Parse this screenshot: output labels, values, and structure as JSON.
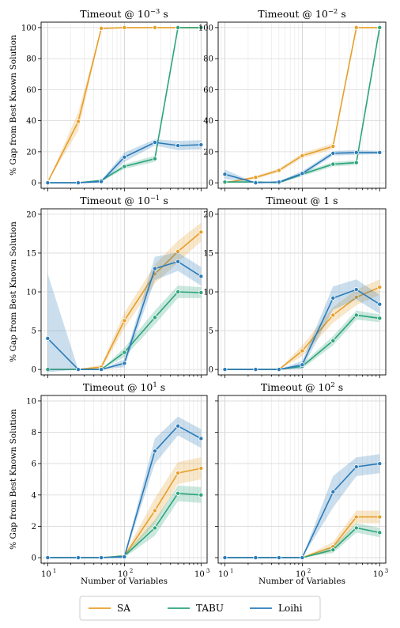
{
  "figure": {
    "ylabel": "% Gap from Best Known Solution",
    "xlabel": "Number of Variables"
  },
  "colors": {
    "SA": "#e69f2a",
    "TABU": "#2ca47a",
    "Loihi": "#2b7bb9"
  },
  "legend": {
    "placement": "bottom-center",
    "entries": [
      {
        "label": "SA",
        "color": "#e69f2a"
      },
      {
        "label": "TABU",
        "color": "#2ca47a"
      },
      {
        "label": "Loihi",
        "color": "#2b7bb9"
      }
    ]
  },
  "chart_data": [
    {
      "type": "line",
      "title_base": "Timeout @ 10",
      "title_exp": "−3",
      "title_unit": " s",
      "x_scale": "log",
      "xlim": [
        10,
        1000
      ],
      "ylim": [
        0,
        100
      ],
      "yticks": [
        "0",
        "20",
        "40",
        "60",
        "80",
        "100"
      ],
      "ytick_values": [
        0,
        20,
        40,
        60,
        80,
        100
      ],
      "grid": true,
      "x": [
        10,
        25,
        50,
        100,
        250,
        500,
        1000
      ],
      "series": [
        {
          "name": "SA",
          "values": [
            0.5,
            39.5,
            99.5,
            100,
            100,
            100,
            100
          ],
          "band": [
            0,
            6,
            0.5,
            0,
            0,
            0,
            0
          ]
        },
        {
          "name": "TABU",
          "values": [
            0,
            0,
            1.5,
            10.5,
            15.5,
            100,
            100
          ],
          "band": [
            0,
            0,
            0.8,
            1.5,
            2,
            0,
            0
          ]
        },
        {
          "name": "Loihi",
          "values": [
            0,
            0,
            0.8,
            16.5,
            26,
            24,
            24.5
          ],
          "band": [
            0,
            0,
            0.8,
            3,
            2,
            3,
            3
          ]
        }
      ]
    },
    {
      "type": "line",
      "title_base": "Timeout @ 10",
      "title_exp": "−2",
      "title_unit": " s",
      "x_scale": "log",
      "xlim": [
        10,
        1000
      ],
      "ylim": [
        0,
        100
      ],
      "yticks": [
        "0",
        "20",
        "40",
        "60",
        "80",
        "100"
      ],
      "ytick_values": [
        0,
        20,
        40,
        60,
        80,
        100
      ],
      "grid": true,
      "x": [
        10,
        25,
        50,
        100,
        250,
        500,
        1000
      ],
      "series": [
        {
          "name": "SA",
          "values": [
            0,
            3.5,
            8,
            17.5,
            23.5,
            100,
            100
          ],
          "band": [
            0,
            1,
            1.2,
            1.5,
            2,
            0,
            0
          ]
        },
        {
          "name": "TABU",
          "values": [
            0.5,
            0.5,
            0,
            5.5,
            12,
            13,
            100
          ],
          "band": [
            0,
            0.3,
            0,
            1.2,
            1.5,
            1.5,
            0
          ]
        },
        {
          "name": "Loihi",
          "values": [
            5.5,
            0,
            0.5,
            6,
            19,
            19.5,
            19.5
          ],
          "band": [
            3,
            0,
            0.5,
            1.5,
            1.5,
            1.5,
            1
          ]
        }
      ]
    },
    {
      "type": "line",
      "title_base": "Timeout @ 10",
      "title_exp": "−1",
      "title_unit": " s",
      "x_scale": "log",
      "xlim": [
        10,
        1000
      ],
      "ylim": [
        0,
        20
      ],
      "yticks": [
        "0",
        "5",
        "10",
        "15",
        "20"
      ],
      "ytick_values": [
        0,
        5,
        10,
        15,
        20
      ],
      "grid": true,
      "x": [
        10,
        25,
        50,
        100,
        250,
        500,
        1000
      ],
      "series": [
        {
          "name": "SA",
          "values": [
            0,
            0,
            0.3,
            6.3,
            12.3,
            15.2,
            17.7
          ],
          "band": [
            0,
            0,
            0.3,
            1,
            1.2,
            1.4,
            1.2
          ]
        },
        {
          "name": "TABU",
          "values": [
            0,
            0,
            0,
            2.2,
            6.7,
            10,
            9.9
          ],
          "band": [
            0,
            0,
            0,
            0.6,
            0.9,
            0.8,
            0.7
          ]
        },
        {
          "name": "Loihi",
          "values": [
            4,
            0,
            0,
            0.8,
            13,
            13.9,
            12
          ],
          "band": [
            8.3,
            0,
            0,
            0.5,
            1.5,
            1.2,
            1.2
          ]
        }
      ]
    },
    {
      "type": "line",
      "title_base": "Timeout @ 1",
      "title_exp": "",
      "title_unit": " s",
      "x_scale": "log",
      "xlim": [
        10,
        1000
      ],
      "ylim": [
        0,
        20
      ],
      "yticks": [
        "0",
        "5",
        "10",
        "15",
        "20"
      ],
      "ytick_values": [
        0,
        5,
        10,
        15,
        20
      ],
      "grid": true,
      "x": [
        10,
        25,
        50,
        100,
        250,
        500,
        1000
      ],
      "series": [
        {
          "name": "SA",
          "values": [
            0,
            0,
            0,
            2.4,
            7,
            9.3,
            10.6
          ],
          "band": [
            0,
            0,
            0,
            0.7,
            1,
            1,
            1
          ]
        },
        {
          "name": "TABU",
          "values": [
            0,
            0,
            0,
            0.4,
            3.7,
            7,
            6.6
          ],
          "band": [
            0,
            0,
            0,
            0.3,
            0.6,
            0.6,
            0.5
          ]
        },
        {
          "name": "Loihi",
          "values": [
            0,
            0,
            0,
            0.6,
            9.2,
            10.3,
            8.4
          ],
          "band": [
            0,
            0,
            0,
            0.5,
            1.5,
            1.3,
            1.2
          ]
        }
      ]
    },
    {
      "type": "line",
      "title_base": "Timeout @ 10",
      "title_exp": "1",
      "title_unit": " s",
      "x_scale": "log",
      "xlim": [
        10,
        1000
      ],
      "ylim": [
        0,
        10
      ],
      "yticks": [
        "0",
        "2",
        "4",
        "6",
        "8",
        "10"
      ],
      "ytick_values": [
        0,
        2,
        4,
        6,
        8,
        10
      ],
      "grid": true,
      "x": [
        10,
        25,
        50,
        100,
        250,
        500,
        1000
      ],
      "series": [
        {
          "name": "SA",
          "values": [
            0,
            0,
            0,
            0.1,
            3,
            5.4,
            5.7
          ],
          "band": [
            0,
            0,
            0,
            0.1,
            0.8,
            0.7,
            0.7
          ]
        },
        {
          "name": "TABU",
          "values": [
            0,
            0,
            0,
            0.1,
            1.9,
            4.1,
            4
          ],
          "band": [
            0,
            0,
            0,
            0.1,
            0.5,
            0.5,
            0.5
          ]
        },
        {
          "name": "Loihi",
          "values": [
            0,
            0,
            0,
            0.05,
            6.8,
            8.4,
            7.6
          ],
          "band": [
            0,
            0,
            0,
            0.1,
            0.8,
            0.6,
            0.6
          ]
        }
      ]
    },
    {
      "type": "line",
      "title_base": "Timeout @ 10",
      "title_exp": "2",
      "title_unit": " s",
      "x_scale": "log",
      "xlim": [
        10,
        1000
      ],
      "ylim": [
        0,
        10
      ],
      "yticks": [],
      "ytick_values": [],
      "grid": true,
      "x": [
        10,
        25,
        50,
        100,
        250,
        500,
        1000
      ],
      "series": [
        {
          "name": "SA",
          "values": [
            0,
            0,
            0,
            0,
            0.7,
            2.6,
            2.6
          ],
          "band": [
            0,
            0,
            0,
            0,
            0.3,
            0.4,
            0.4
          ]
        },
        {
          "name": "TABU",
          "values": [
            0,
            0,
            0,
            0,
            0.5,
            1.9,
            1.6
          ],
          "band": [
            0,
            0,
            0,
            0,
            0.2,
            0.3,
            0.3
          ]
        },
        {
          "name": "Loihi",
          "values": [
            0,
            0,
            0,
            0,
            4.2,
            5.8,
            6
          ],
          "band": [
            0,
            0,
            0,
            0,
            1,
            0.6,
            0.6
          ]
        }
      ]
    }
  ]
}
